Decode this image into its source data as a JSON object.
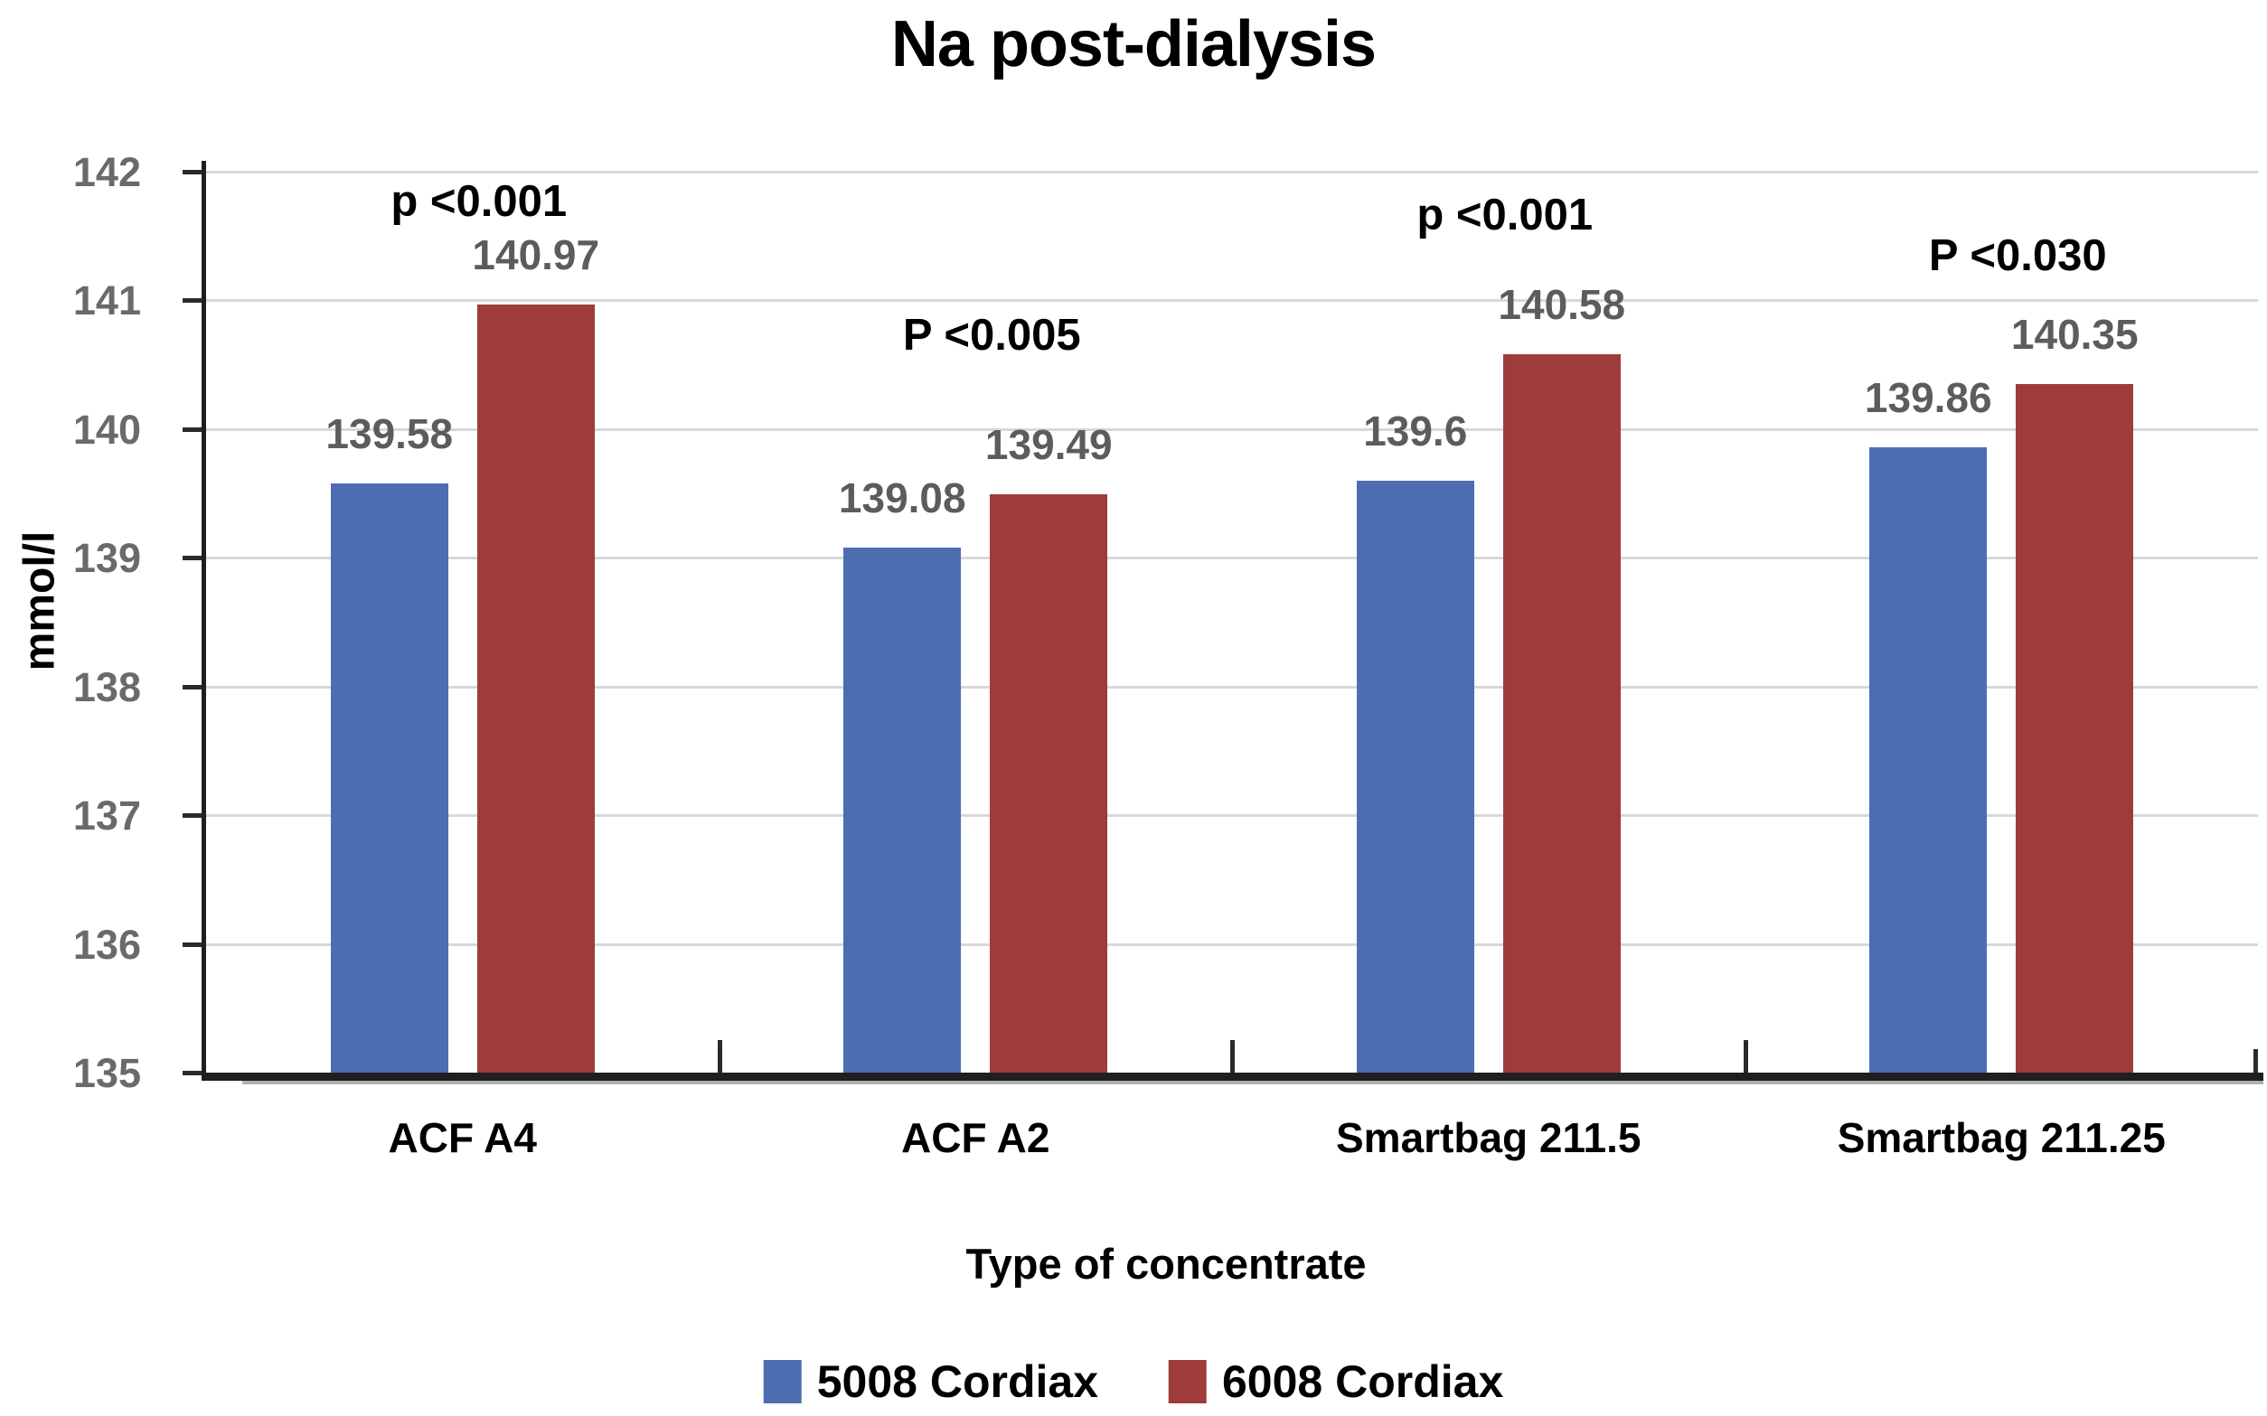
{
  "chart_data": {
    "type": "bar",
    "title": "Na post-dialysis",
    "ylabel": "mmol/l",
    "xlabel": "Type of concentrate",
    "ylim": [
      135,
      142
    ],
    "ytick_step": 1,
    "yticks": [
      135,
      136,
      137,
      138,
      139,
      140,
      141,
      142
    ],
    "grid": true,
    "legend_position": "bottom",
    "categories": [
      "ACF A4",
      "ACF A2",
      "Smartbag 211.5",
      "Smartbag 211.25"
    ],
    "series": [
      {
        "name": "5008 Cordiax",
        "color": "#4d6db2",
        "values": [
          139.58,
          139.08,
          139.6,
          139.86
        ]
      },
      {
        "name": "6008 Cordiax",
        "color": "#9d3c39",
        "values": [
          140.97,
          139.49,
          140.58,
          140.35
        ]
      }
    ],
    "p_value_annotations": [
      "p <0.001",
      "P <0.005",
      "p <0.001",
      "P <0.030"
    ]
  },
  "colors": {
    "grid": "#d8d8d8",
    "axis": "#1f1f1f",
    "tick": "#2a2a2a",
    "tick_label": "#6a6a6a",
    "value_label": "#5c5c5c",
    "annotation": "#000000",
    "background": "#ffffff"
  }
}
